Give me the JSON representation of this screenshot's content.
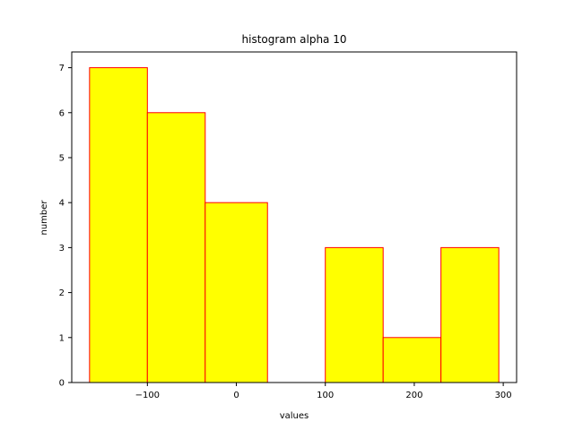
{
  "chart_data": {
    "type": "bar",
    "title": "histogram alpha 10",
    "xlabel": "values",
    "ylabel": "number",
    "bin_edges": [
      -165,
      -100,
      -35,
      35,
      100,
      165,
      230,
      295
    ],
    "values": [
      7,
      6,
      4,
      0,
      3,
      1,
      3
    ],
    "xlim": [
      -185,
      315
    ],
    "ylim": [
      0,
      7.35
    ],
    "xticks": [
      -100,
      0,
      100,
      200,
      300
    ],
    "xtick_labels": [
      "−100",
      "0",
      "100",
      "200",
      "300"
    ],
    "yticks": [
      0,
      1,
      2,
      3,
      4,
      5,
      6,
      7
    ],
    "ytick_labels": [
      "0",
      "1",
      "2",
      "3",
      "4",
      "5",
      "6",
      "7"
    ],
    "bar_fill_color": "#ffff00",
    "bar_edge_color": "#ff0000",
    "grid": false,
    "legend": null
  }
}
